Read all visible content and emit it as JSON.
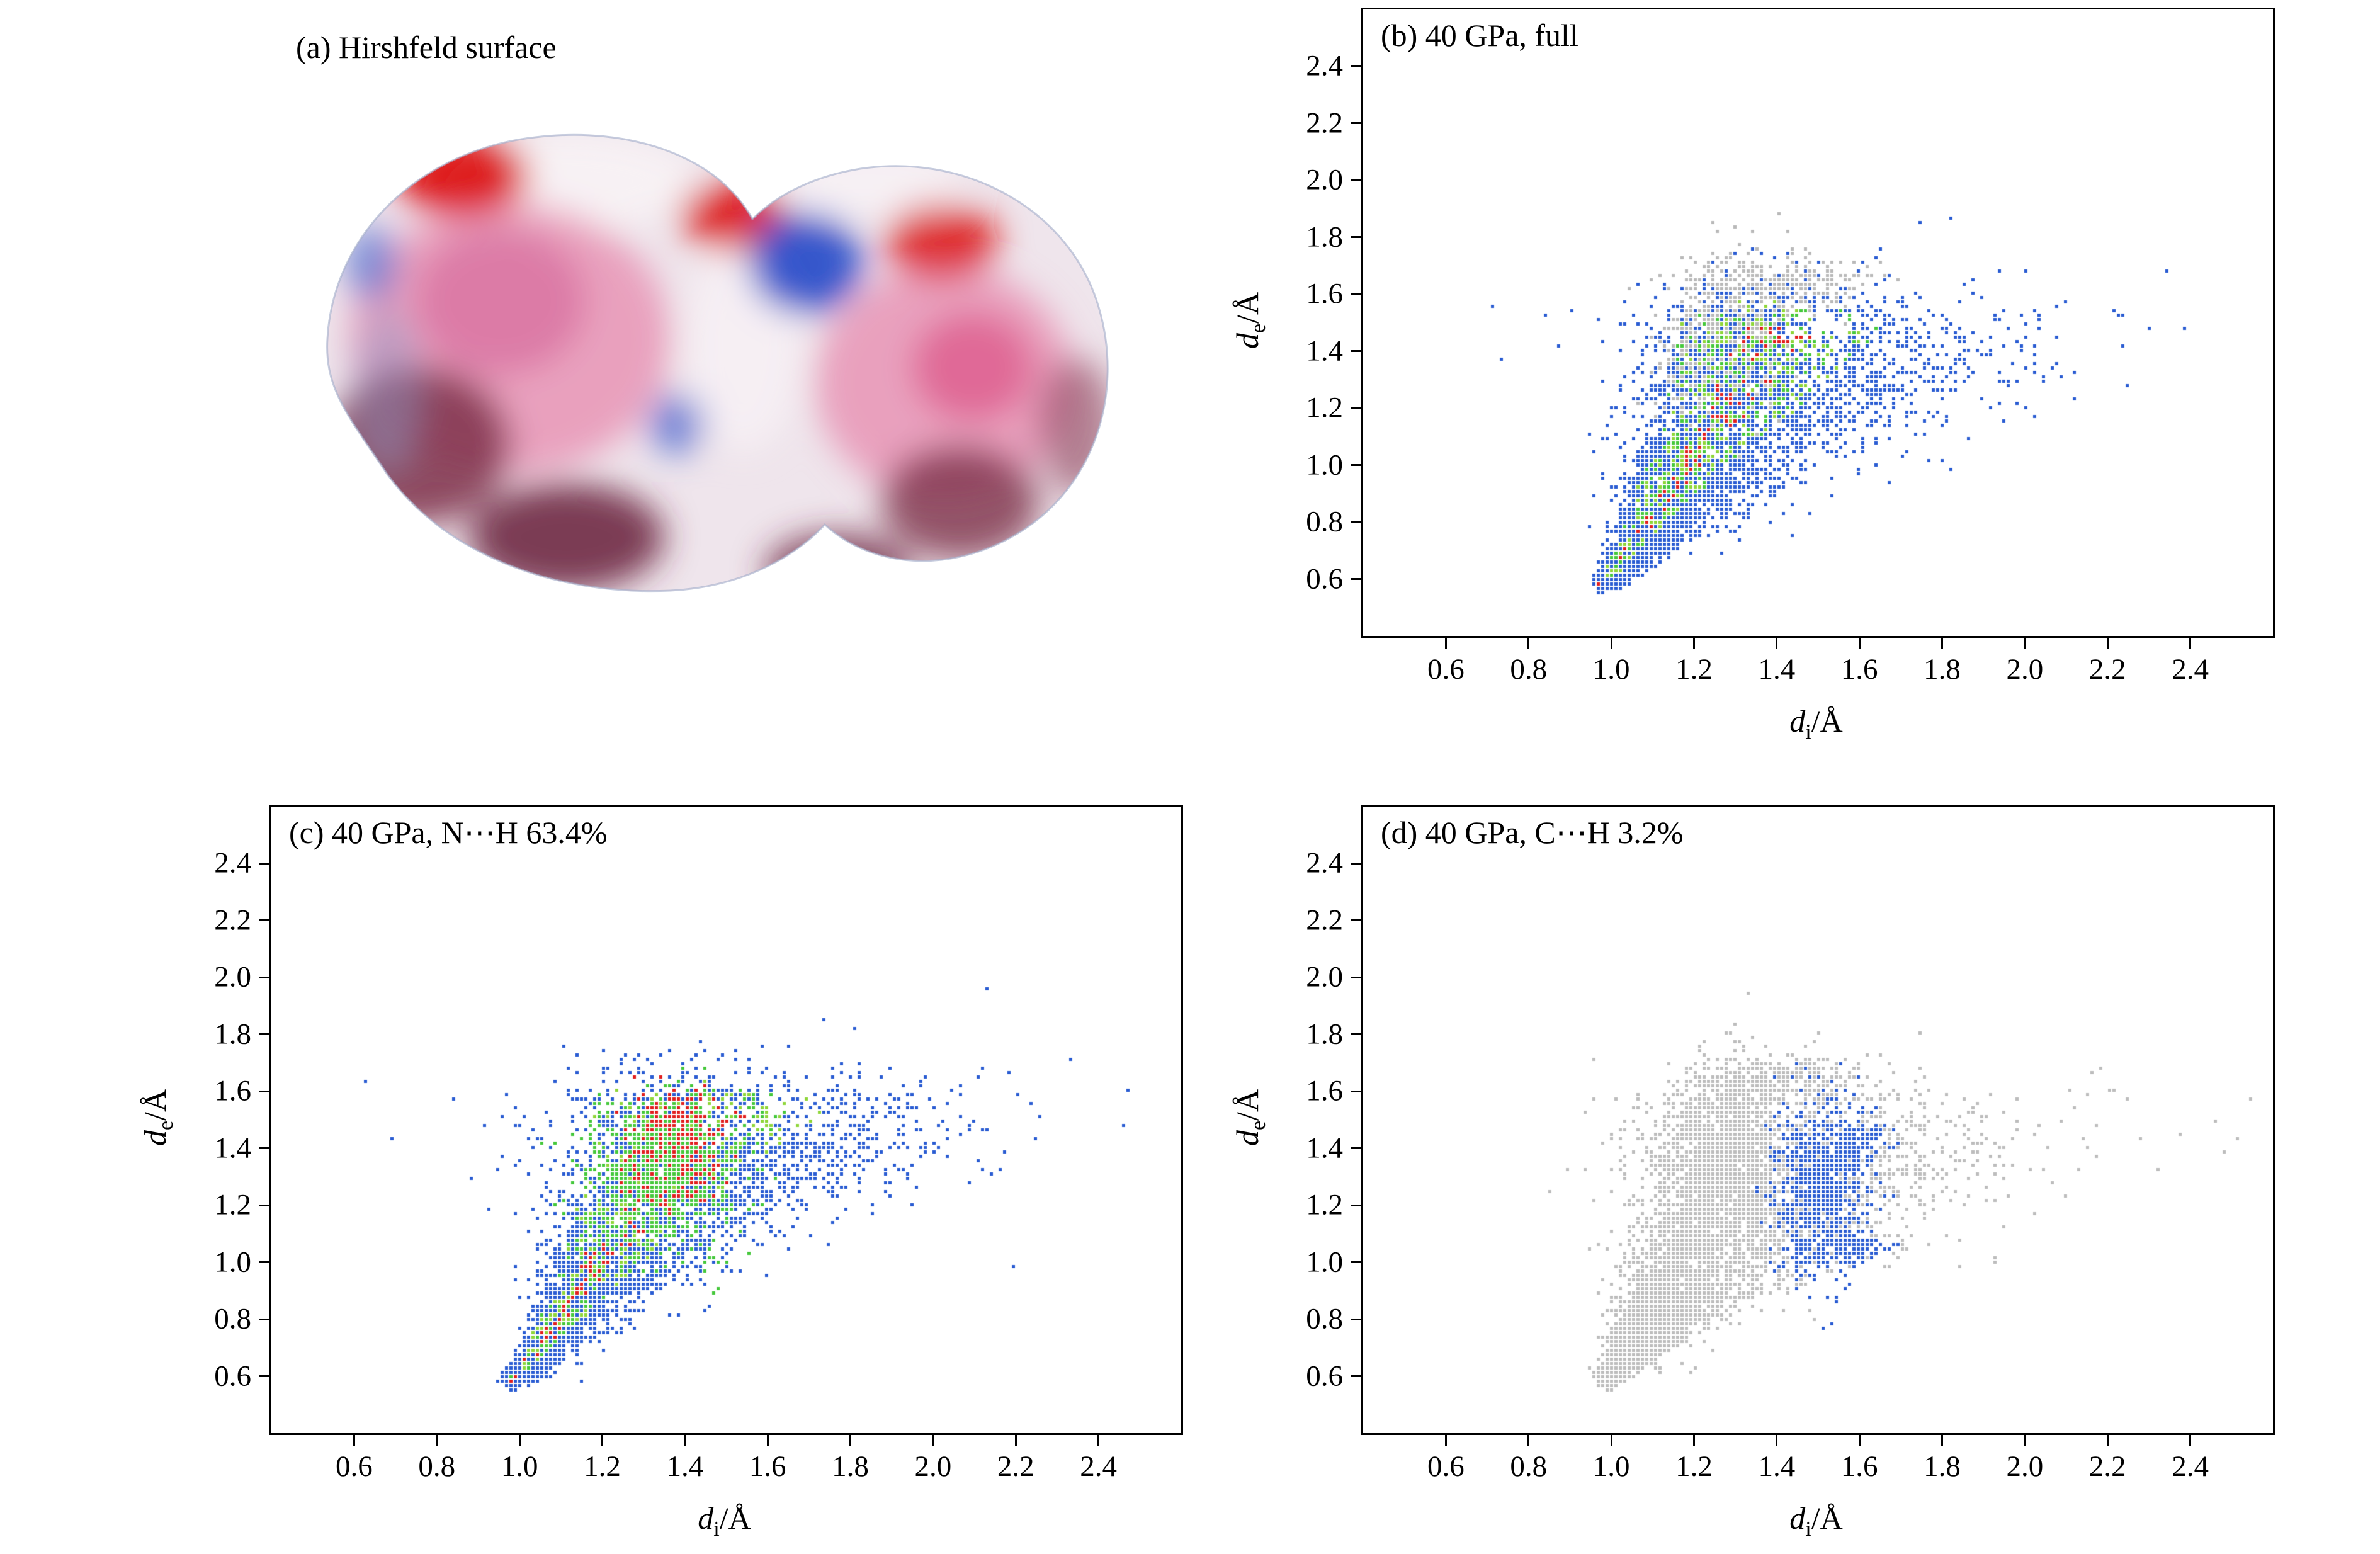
{
  "figure": {
    "background": "#ffffff",
    "panels": {
      "a": {
        "title": "(a) Hirshfeld surface"
      },
      "b": {
        "title": "(b) 40 GPa, full"
      },
      "c": {
        "title": "(c) 40 GPa, N⋯H 63.4%"
      },
      "d": {
        "title": "(d) 40 GPa, C⋯H 3.2%"
      }
    }
  },
  "axes": {
    "x_label": {
      "main": "d",
      "sub": "i",
      "unit": "/Å"
    },
    "y_label": {
      "main": "d",
      "sub": "e",
      "unit": "/Å"
    },
    "xlim": [
      0.4,
      2.6
    ],
    "ylim": [
      0.4,
      2.6
    ],
    "ticks": [
      0.6,
      0.8,
      1.0,
      1.2,
      1.4,
      1.6,
      1.8,
      2.0,
      2.2,
      2.4
    ],
    "tick_labels": [
      "0.6",
      "0.8",
      "1.0",
      "1.2",
      "1.4",
      "1.6",
      "1.8",
      "2.0",
      "2.2",
      "2.4"
    ]
  },
  "hirshfeld_surface": {
    "description": "3D Hirshfeld surface of the molecule at high pressure; two-lobed (peanut) shape",
    "color_meaning": {
      "red": "close contacts",
      "white": "contacts near van der Waals separation",
      "blue": "longer contacts"
    },
    "palette": [
      "#dc1212",
      "#e78fb2",
      "#d76f9e",
      "#7c3049",
      "#2b50c9",
      "#efe5ec"
    ]
  },
  "chart_data": [
    {
      "id": "b",
      "type": "scatter",
      "subtype": "hirshfeld-fingerprint",
      "title": "(b) 40 GPa, full",
      "xlabel": "d_i/Å",
      "ylabel": "d_e/Å",
      "xlim": [
        0.4,
        2.6
      ],
      "ylim": [
        0.4,
        2.6
      ],
      "x_extent": [
        0.95,
        1.85
      ],
      "y_extent": [
        0.57,
        1.75
      ],
      "spine": [
        [
          0.97,
          0.585
        ],
        [
          1.03,
          0.7
        ],
        [
          1.1,
          0.84
        ],
        [
          1.18,
          1.0
        ],
        [
          1.27,
          1.18
        ],
        [
          1.35,
          1.36
        ],
        [
          1.41,
          1.5
        ]
      ],
      "seed": 11,
      "n_points": 5200,
      "spread": 0.3,
      "skew": 2.0,
      "red_r": 0.3,
      "green_r": 0.85,
      "colors": {
        "high": "#e11f1f",
        "mid": "#46c83c",
        "mid2": "#8fd63a",
        "low": "#2a5cd2",
        "other": "#b9b9b9"
      },
      "gray_blobs": [
        {
          "cx": 1.27,
          "cy": 1.44,
          "sx": 0.065,
          "sy": 0.13,
          "n": 900
        },
        {
          "cx": 1.41,
          "cy": 1.64,
          "sx": 0.1,
          "sy": 0.05,
          "n": 300
        },
        {
          "cx": 1.19,
          "cy": 1.3,
          "sx": 0.04,
          "sy": 0.06,
          "n": 220
        }
      ]
    },
    {
      "id": "c",
      "type": "scatter",
      "subtype": "hirshfeld-fingerprint",
      "title": "(c) 40 GPa, N⋯H 63.4%",
      "contact": "N⋯H",
      "fraction_percent": 63.4,
      "xlabel": "d_i/Å",
      "ylabel": "d_e/Å",
      "xlim": [
        0.4,
        2.6
      ],
      "ylim": [
        0.4,
        2.6
      ],
      "x_extent": [
        0.95,
        1.9
      ],
      "y_extent": [
        0.57,
        1.75
      ],
      "spine": [
        [
          0.975,
          0.585
        ],
        [
          1.05,
          0.72
        ],
        [
          1.13,
          0.89
        ],
        [
          1.22,
          1.07
        ],
        [
          1.31,
          1.26
        ],
        [
          1.39,
          1.43
        ],
        [
          1.45,
          1.55
        ]
      ],
      "seed": 23,
      "n_points": 5600,
      "spread": 0.3,
      "skew": 1.4,
      "red_r": 0.42,
      "green_r": 0.95,
      "colors": {
        "high": "#e11f1f",
        "mid": "#46c83c",
        "mid2": "#8fd63a",
        "low": "#2a5cd2",
        "other": "#b9b9b9"
      },
      "extra_blobs": [
        {
          "cx": 1.36,
          "cy": 1.38,
          "sx": 0.05,
          "sy": 0.09,
          "n": 450,
          "color": "high"
        },
        {
          "cx": 1.33,
          "cy": 1.3,
          "sx": 0.09,
          "sy": 0.14,
          "n": 600,
          "color": "mid"
        }
      ]
    },
    {
      "id": "d",
      "type": "scatter",
      "subtype": "hirshfeld-fingerprint",
      "title": "(d) 40 GPa, C⋯H 3.2%",
      "contact": "C⋯H",
      "fraction_percent": 3.2,
      "xlabel": "d_i/Å",
      "ylabel": "d_e/Å",
      "xlim": [
        0.4,
        2.6
      ],
      "ylim": [
        0.4,
        2.6
      ],
      "x_extent": [
        0.95,
        1.85
      ],
      "y_extent": [
        0.57,
        1.75
      ],
      "spine": [
        [
          0.97,
          0.585
        ],
        [
          1.03,
          0.7
        ],
        [
          1.1,
          0.84
        ],
        [
          1.18,
          1.0
        ],
        [
          1.27,
          1.18
        ],
        [
          1.35,
          1.36
        ],
        [
          1.41,
          1.5
        ]
      ],
      "seed": 31,
      "n_points": 5200,
      "spread": 0.3,
      "skew": 2.0,
      "monochrome": "#bdbdbd",
      "colors": {
        "high": "#e11f1f",
        "mid": "#46c83c",
        "mid2": "#8fd63a",
        "low": "#2a5cd2",
        "other": "#bdbdbd"
      },
      "gray_blobs": [
        {
          "cx": 1.27,
          "cy": 1.44,
          "sx": 0.065,
          "sy": 0.13,
          "n": 900
        },
        {
          "cx": 1.41,
          "cy": 1.64,
          "sx": 0.1,
          "sy": 0.05,
          "n": 300
        }
      ],
      "blue_blobs": [
        {
          "cx": 1.5,
          "cy": 1.27,
          "sx": 0.055,
          "sy": 0.15,
          "n": 700
        },
        {
          "cx": 1.58,
          "cy": 1.43,
          "sx": 0.04,
          "sy": 0.05,
          "n": 160
        },
        {
          "cx": 1.55,
          "cy": 1.06,
          "sx": 0.05,
          "sy": 0.04,
          "n": 140
        }
      ]
    }
  ]
}
